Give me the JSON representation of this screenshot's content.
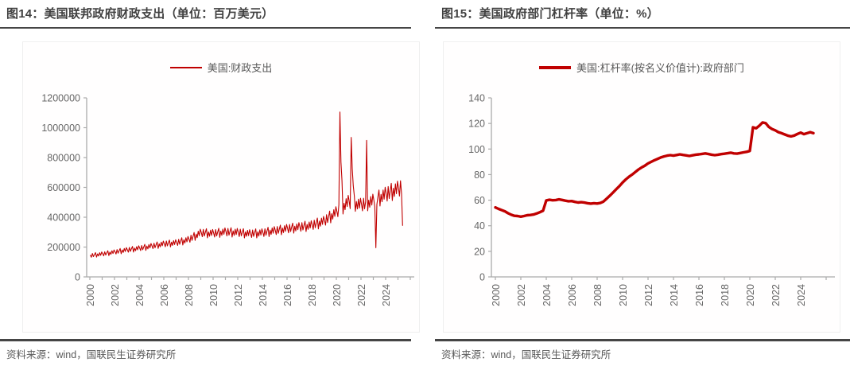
{
  "figures": [
    {
      "title": "图14：美国联邦政府财政支出（单位：百万美元）",
      "legend": "美国:财政支出",
      "source": "资料来源：wind，国联民生证券研究所"
    },
    {
      "title": "图15：美国政府部门杠杆率（单位：%）",
      "legend": "美国:杠杆率(按名义价值计):政府部门",
      "source": "资料来源：wind，国联民生证券研究所"
    }
  ],
  "colors": {
    "line": "#C00000",
    "axis": "#ABABAB",
    "tick_label": "#666666",
    "title": "#404040",
    "rule": "#454545",
    "source_text": "#595959",
    "panel_border": "#EFEFEF"
  },
  "chart_data": [
    {
      "type": "line",
      "title": "图14：美国联邦政府财政支出（单位：百万美元）",
      "unit": "百万美元",
      "grid": false,
      "legend_position": "top-center",
      "series": [
        {
          "name": "美国:财政支出",
          "color": "#C00000",
          "width": 1.1
        }
      ],
      "ylim": [
        0,
        1200000
      ],
      "yticks": [
        0,
        200000,
        400000,
        600000,
        800000,
        1000000,
        1200000
      ],
      "x_start": 2000,
      "x_end": 2025.42,
      "xtick_labels": [
        "2000",
        "2002",
        "2004",
        "2006",
        "2008",
        "2010",
        "2012",
        "2014",
        "2016",
        "2018",
        "2020",
        "2022",
        "2024"
      ],
      "resolution": "monthly",
      "last_month": 5,
      "trend_anchors": [
        [
          2000,
          142000
        ],
        [
          2001,
          152000
        ],
        [
          2002,
          165000
        ],
        [
          2003,
          179000
        ],
        [
          2004,
          190000
        ],
        [
          2005,
          204000
        ],
        [
          2006,
          219000
        ],
        [
          2007,
          227000
        ],
        [
          2008,
          247000
        ],
        [
          2009,
          293000
        ],
        [
          2010,
          289000
        ],
        [
          2011,
          299000
        ],
        [
          2012,
          295000
        ],
        [
          2013,
          287000
        ],
        [
          2014,
          293000
        ],
        [
          2015,
          307000
        ],
        [
          2016,
          320000
        ],
        [
          2017,
          331000
        ],
        [
          2018,
          343000
        ],
        [
          2019,
          370000
        ],
        [
          2020,
          430000
        ],
        [
          2021,
          500000
        ],
        [
          2022,
          478000
        ],
        [
          2023,
          505000
        ],
        [
          2024,
          548000
        ],
        [
          2025,
          585000
        ],
        [
          2025.5,
          600000
        ]
      ],
      "monthly_noise_pattern": [
        0.02,
        -0.08,
        0.09,
        -0.06,
        0.03,
        0.11,
        -0.1,
        0.04,
        -0.06,
        0.08,
        -0.04,
        0.1
      ],
      "spike_overrides": {
        "2020-04": 1105000,
        "2020-05": 770000,
        "2020-06": 645000,
        "2021-03": 935000,
        "2021-04": 725000,
        "2021-05": 610000,
        "2022-06": 915000,
        "2023-03": 196000,
        "2025-05": 345000
      }
    },
    {
      "type": "line",
      "title": "图15：美国政府部门杠杆率（单位：%）",
      "unit": "%",
      "grid": false,
      "legend_position": "top-center",
      "series": [
        {
          "name": "美国:杠杆率(按名义价值计):政府部门",
          "color": "#C00000",
          "width": 3.4
        }
      ],
      "ylim": [
        0,
        140
      ],
      "yticks": [
        0,
        20,
        40,
        60,
        80,
        100,
        120,
        140
      ],
      "x_start": 2000,
      "x_step": 0.25,
      "xtick_labels": [
        "2000",
        "2002",
        "2004",
        "2006",
        "2008",
        "2010",
        "2012",
        "2014",
        "2016",
        "2018",
        "2020",
        "2022",
        "2024"
      ],
      "resolution": "quarterly",
      "values": [
        54.3,
        53.2,
        52.2,
        51.3,
        49.8,
        48.6,
        47.8,
        47.6,
        47.1,
        47.6,
        48.2,
        48.4,
        48.8,
        49.6,
        50.6,
        51.8,
        59.8,
        60.3,
        59.9,
        60.1,
        60.6,
        60.2,
        59.6,
        59.2,
        59.3,
        58.7,
        58.2,
        58.4,
        58.1,
        57.6,
        57.3,
        57.6,
        57.4,
        57.8,
        58.9,
        61.2,
        63.5,
        66.0,
        68.6,
        71.0,
        73.8,
        76.2,
        78.3,
        80.0,
        82.0,
        84.0,
        85.6,
        87.0,
        88.7,
        90.0,
        91.2,
        92.3,
        93.4,
        94.2,
        94.8,
        95.2,
        94.8,
        95.3,
        95.8,
        95.4,
        95.0,
        94.6,
        95.1,
        95.6,
        95.8,
        96.2,
        96.6,
        96.1,
        95.6,
        95.2,
        95.6,
        96.0,
        96.3,
        96.7,
        97.1,
        96.6,
        96.4,
        96.9,
        97.4,
        97.8,
        98.5,
        117.0,
        116.2,
        118.3,
        120.8,
        120.2,
        117.2,
        115.6,
        114.6,
        113.2,
        112.4,
        111.4,
        110.4,
        109.9,
        110.6,
        111.8,
        112.8,
        111.6,
        112.4,
        113.2,
        112.4
      ]
    }
  ]
}
